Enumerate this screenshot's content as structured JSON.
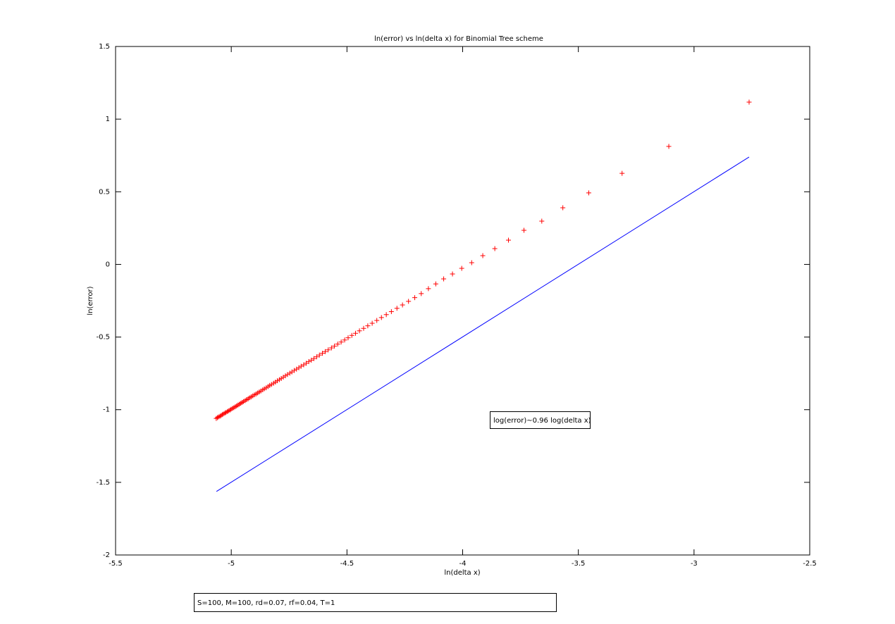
{
  "chart_data": {
    "type": "scatter",
    "title": "ln(error) vs ln(delta x) for Binomial Tree scheme",
    "x_label": "ln(delta x)",
    "y_label": "ln(error)",
    "xlim": [
      -5.5,
      -2.5
    ],
    "ylim": [
      -2,
      1.5
    ],
    "xticks": [
      -5.5,
      -5,
      -4.5,
      -4,
      -3.5,
      -3,
      -2.5
    ],
    "yticks": [
      -2,
      -1.5,
      -1,
      -0.5,
      0,
      0.5,
      1,
      1.5
    ],
    "grid": false,
    "annotations": [
      "log(error)~0.96 log(delta x)",
      "S=100, M=100, rd=0.07, rf=0.04, T=1"
    ],
    "series": [
      {
        "type": "scatter",
        "marker": "+",
        "color": "#ff0000",
        "x": [
          -2.762,
          -3.109,
          -3.311,
          -3.455,
          -3.567,
          -3.658,
          -3.735,
          -3.802,
          -3.861,
          -3.913,
          -3.961,
          -4.004,
          -4.044,
          -4.082,
          -4.116,
          -4.148,
          -4.179,
          -4.207,
          -4.234,
          -4.26,
          -4.284,
          -4.308,
          -4.33,
          -4.351,
          -4.371,
          -4.391,
          -4.41,
          -4.428,
          -4.446,
          -4.463,
          -4.479,
          -4.495,
          -4.51,
          -4.525,
          -4.54,
          -4.554,
          -4.567,
          -4.581,
          -4.594,
          -4.606,
          -4.619,
          -4.631,
          -4.643,
          -4.654,
          -4.665,
          -4.676,
          -4.687,
          -4.698,
          -4.708,
          -4.718,
          -4.728,
          -4.738,
          -4.747,
          -4.757,
          -4.766,
          -4.775,
          -4.784,
          -4.792,
          -4.801,
          -4.809,
          -4.817,
          -4.826,
          -4.834,
          -4.841,
          -4.849,
          -4.857,
          -4.864,
          -4.872,
          -4.879,
          -4.886,
          -4.893,
          -4.9,
          -4.907,
          -4.914,
          -4.921,
          -4.927,
          -4.934,
          -4.94,
          -4.947,
          -4.953,
          -4.959,
          -4.965,
          -4.971,
          -4.977,
          -4.983,
          -4.989,
          -4.995,
          -5.001,
          -5.006,
          -5.012,
          -5.017,
          -5.023,
          -5.028,
          -5.034,
          -5.039,
          -5.044,
          -5.049,
          -5.055,
          -5.06,
          -5.065
        ],
        "values": [
          1.117,
          0.812,
          0.627,
          0.492,
          0.39,
          0.298,
          0.235,
          0.167,
          0.109,
          0.06,
          0.012,
          -0.027,
          -0.066,
          -0.1,
          -0.134,
          -0.167,
          -0.201,
          -0.229,
          -0.254,
          -0.279,
          -0.302,
          -0.325,
          -0.346,
          -0.366,
          -0.386,
          -0.405,
          -0.423,
          -0.44,
          -0.457,
          -0.474,
          -0.489,
          -0.505,
          -0.52,
          -0.534,
          -0.548,
          -0.562,
          -0.575,
          -0.588,
          -0.6,
          -0.612,
          -0.624,
          -0.636,
          -0.648,
          -0.659,
          -0.669,
          -0.68,
          -0.691,
          -0.701,
          -0.711,
          -0.721,
          -0.73,
          -0.74,
          -0.749,
          -0.758,
          -0.767,
          -0.776,
          -0.785,
          -0.793,
          -0.801,
          -0.81,
          -0.818,
          -0.826,
          -0.833,
          -0.841,
          -0.849,
          -0.856,
          -0.863,
          -0.871,
          -0.878,
          -0.885,
          -0.892,
          -0.898,
          -0.905,
          -0.912,
          -0.918,
          -0.925,
          -0.931,
          -0.938,
          -0.944,
          -0.95,
          -0.956,
          -0.962,
          -0.968,
          -0.974,
          -0.98,
          -0.986,
          -0.991,
          -0.997,
          -1.003,
          -1.008,
          -1.013,
          -1.019,
          -1.024,
          -1.029,
          -1.034,
          -1.04,
          -1.045,
          -1.05,
          -1.055,
          -1.06
        ]
      },
      {
        "type": "line",
        "color": "#0000ff",
        "x": [
          -5.064,
          -2.762
        ],
        "values": [
          -1.563,
          0.739
        ]
      }
    ]
  }
}
